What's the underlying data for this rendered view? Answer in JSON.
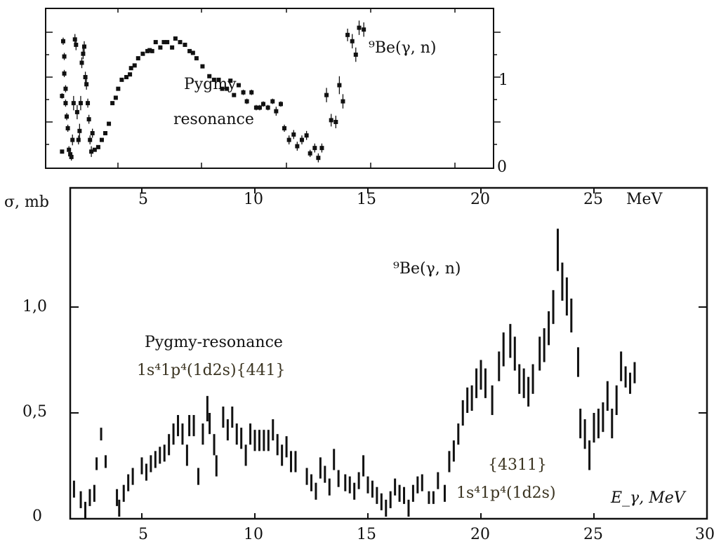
{
  "chart_data": [
    {
      "type": "scatter",
      "panel": "top-inset",
      "title": "⁹Be(γ, n)",
      "annotation": [
        "Pygmy-",
        "resonance"
      ],
      "ylabel_ticks": [
        "0",
        "1"
      ],
      "ylim": [
        0,
        1.77
      ],
      "xlim": [
        0.6,
        20.8
      ],
      "points": [
        [
          1.36,
          1.4,
          0.04
        ],
        [
          1.41,
          1.23,
          0.04
        ],
        [
          1.41,
          1.04,
          0.04
        ],
        [
          1.47,
          0.87,
          0.04
        ],
        [
          1.47,
          0.71,
          0.04
        ],
        [
          1.52,
          0.56,
          0.04
        ],
        [
          1.31,
          0.79,
          0.03
        ],
        [
          1.31,
          0.17,
          0.02
        ],
        [
          1.57,
          0.43,
          0.04
        ],
        [
          1.62,
          0.19,
          0.04
        ],
        [
          1.68,
          0.14,
          0.04
        ],
        [
          1.73,
          0.11,
          0.04
        ],
        [
          1.78,
          0.3,
          0.06
        ],
        [
          1.83,
          0.71,
          0.08
        ],
        [
          1.89,
          1.42,
          0.06
        ],
        [
          1.94,
          1.36,
          0.06
        ],
        [
          1.99,
          0.61,
          0.08
        ],
        [
          2.05,
          0.3,
          0.05
        ],
        [
          2.1,
          0.4,
          0.08
        ],
        [
          2.15,
          0.71,
          0.08
        ],
        [
          2.2,
          1.16,
          0.06
        ],
        [
          2.26,
          1.26,
          0.06
        ],
        [
          2.31,
          1.34,
          0.06
        ],
        [
          2.36,
          1.0,
          0.06
        ],
        [
          2.41,
          0.92,
          0.06
        ],
        [
          2.47,
          0.71,
          0.05
        ],
        [
          2.52,
          0.53,
          0.05
        ],
        [
          2.57,
          0.3,
          0.05
        ],
        [
          2.63,
          0.17,
          0.06
        ],
        [
          2.68,
          0.375,
          0.05
        ],
        [
          2.78,
          0.19,
          0.02
        ],
        [
          2.94,
          0.22,
          0.02
        ],
        [
          3.1,
          0.3,
          0.02
        ],
        [
          3.26,
          0.375,
          0.02
        ],
        [
          3.42,
          0.48,
          0.02
        ],
        [
          3.58,
          0.71,
          0.02
        ],
        [
          3.73,
          0.77,
          0.02
        ],
        [
          3.84,
          0.87,
          0.02
        ],
        [
          4.0,
          0.97,
          0.02
        ],
        [
          4.21,
          1.0,
          0.02
        ],
        [
          4.37,
          1.03,
          0.02
        ],
        [
          4.42,
          1.1,
          0.02
        ],
        [
          4.58,
          1.13,
          0.02
        ],
        [
          4.74,
          1.21,
          0.02
        ],
        [
          4.95,
          1.26,
          0.02
        ],
        [
          5.16,
          1.29,
          0.02
        ],
        [
          5.26,
          1.3,
          0.02
        ],
        [
          5.37,
          1.29,
          0.02
        ],
        [
          5.53,
          1.39,
          0.02
        ],
        [
          5.74,
          1.33,
          0.02
        ],
        [
          5.9,
          1.39,
          0.02
        ],
        [
          6.05,
          1.39,
          0.02
        ],
        [
          6.27,
          1.33,
          0.02
        ],
        [
          6.42,
          1.43,
          0.02
        ],
        [
          6.63,
          1.39,
          0.02
        ],
        [
          6.85,
          1.36,
          0.02
        ],
        [
          7.06,
          1.29,
          0.02
        ],
        [
          7.21,
          1.27,
          0.02
        ],
        [
          7.37,
          1.21,
          0.02
        ],
        [
          7.64,
          1.12,
          0.02
        ],
        [
          7.95,
          1.01,
          0.02
        ],
        [
          8.16,
          0.97,
          0.02
        ],
        [
          8.37,
          0.97,
          0.02
        ],
        [
          8.53,
          0.87,
          0.02
        ],
        [
          8.74,
          0.87,
          0.02
        ],
        [
          8.9,
          0.96,
          0.02
        ],
        [
          9.06,
          0.8,
          0.02
        ],
        [
          9.27,
          0.91,
          0.02
        ],
        [
          9.48,
          0.83,
          0.03
        ],
        [
          9.64,
          0.73,
          0.03
        ],
        [
          9.85,
          0.83,
          0.03
        ],
        [
          10.06,
          0.66,
          0.03
        ],
        [
          10.22,
          0.66,
          0.03
        ],
        [
          10.38,
          0.7,
          0.03
        ],
        [
          10.59,
          0.66,
          0.03
        ],
        [
          10.8,
          0.73,
          0.03
        ],
        [
          10.96,
          0.62,
          0.05
        ],
        [
          11.17,
          0.7,
          0.03
        ],
        [
          11.33,
          0.43,
          0.04
        ],
        [
          11.54,
          0.3,
          0.05
        ],
        [
          11.75,
          0.36,
          0.05
        ],
        [
          11.91,
          0.23,
          0.05
        ],
        [
          12.12,
          0.3,
          0.05
        ],
        [
          12.33,
          0.35,
          0.05
        ],
        [
          12.49,
          0.15,
          0.04
        ],
        [
          12.7,
          0.21,
          0.05
        ],
        [
          12.86,
          0.1,
          0.05
        ],
        [
          13.02,
          0.21,
          0.05
        ],
        [
          13.23,
          0.8,
          0.08
        ],
        [
          13.44,
          0.52,
          0.07
        ],
        [
          13.65,
          0.5,
          0.07
        ],
        [
          13.81,
          0.91,
          0.1
        ],
        [
          13.97,
          0.73,
          0.08
        ],
        [
          14.18,
          1.47,
          0.07
        ],
        [
          14.39,
          1.4,
          0.08
        ],
        [
          14.55,
          1.25,
          0.08
        ],
        [
          14.7,
          1.55,
          0.08
        ],
        [
          14.91,
          1.53,
          0.08
        ]
      ]
    },
    {
      "type": "scatter",
      "panel": "main",
      "title": "⁹Be(γ, n)",
      "ylabel": "σ, mb",
      "xlabel": "E_γ, MeV",
      "xunit_label": "MeV",
      "xlim": [
        1.85,
        30
      ],
      "ylim": [
        0,
        1.56
      ],
      "x_ticks": [
        "5",
        "10",
        "15",
        "20",
        "25",
        "30"
      ],
      "x_ticks_top": [
        "5",
        "10",
        "15",
        "20",
        "25"
      ],
      "y_ticks": [
        "0",
        "0,5",
        "1,0"
      ],
      "annotations": {
        "pygmy_label": "Pygmy-resonance",
        "pygmy_config": "1s⁴1p⁴(1d2s){441}",
        "gdr_symmetry": "{4311}",
        "gdr_config": "1s⁴1p⁴(1d2s)"
      },
      "points": [
        [
          2.0,
          0.14,
          0.04
        ],
        [
          2.3,
          0.09,
          0.04
        ],
        [
          2.5,
          0.04,
          0.04
        ],
        [
          2.7,
          0.1,
          0.04
        ],
        [
          2.9,
          0.12,
          0.04
        ],
        [
          3.0,
          0.26,
          0.03
        ],
        [
          3.2,
          0.4,
          0.03
        ],
        [
          3.4,
          0.27,
          0.03
        ],
        [
          3.9,
          0.1,
          0.04
        ],
        [
          4.0,
          0.05,
          0.04
        ],
        [
          4.2,
          0.12,
          0.04
        ],
        [
          4.4,
          0.17,
          0.04
        ],
        [
          4.6,
          0.2,
          0.04
        ],
        [
          5.0,
          0.25,
          0.04
        ],
        [
          5.2,
          0.22,
          0.04
        ],
        [
          5.4,
          0.26,
          0.04
        ],
        [
          5.6,
          0.28,
          0.04
        ],
        [
          5.8,
          0.3,
          0.04
        ],
        [
          6.0,
          0.31,
          0.04
        ],
        [
          6.2,
          0.35,
          0.05
        ],
        [
          6.4,
          0.4,
          0.05
        ],
        [
          6.6,
          0.44,
          0.05
        ],
        [
          6.8,
          0.4,
          0.05
        ],
        [
          7.0,
          0.3,
          0.05
        ],
        [
          7.1,
          0.44,
          0.05
        ],
        [
          7.3,
          0.44,
          0.05
        ],
        [
          7.5,
          0.2,
          0.04
        ],
        [
          7.7,
          0.4,
          0.05
        ],
        [
          7.9,
          0.52,
          0.06
        ],
        [
          8.0,
          0.45,
          0.05
        ],
        [
          8.2,
          0.35,
          0.05
        ],
        [
          8.3,
          0.25,
          0.05
        ],
        [
          8.6,
          0.48,
          0.05
        ],
        [
          8.8,
          0.42,
          0.05
        ],
        [
          9.0,
          0.48,
          0.05
        ],
        [
          9.2,
          0.4,
          0.05
        ],
        [
          9.4,
          0.38,
          0.05
        ],
        [
          9.6,
          0.3,
          0.05
        ],
        [
          9.8,
          0.4,
          0.05
        ],
        [
          10.0,
          0.37,
          0.05
        ],
        [
          10.2,
          0.37,
          0.05
        ],
        [
          10.4,
          0.37,
          0.05
        ],
        [
          10.6,
          0.37,
          0.05
        ],
        [
          10.8,
          0.42,
          0.05
        ],
        [
          11.0,
          0.35,
          0.05
        ],
        [
          11.2,
          0.3,
          0.05
        ],
        [
          11.4,
          0.34,
          0.05
        ],
        [
          11.6,
          0.27,
          0.05
        ],
        [
          11.8,
          0.27,
          0.05
        ],
        [
          12.3,
          0.2,
          0.04
        ],
        [
          12.5,
          0.17,
          0.04
        ],
        [
          12.7,
          0.13,
          0.04
        ],
        [
          12.9,
          0.24,
          0.05
        ],
        [
          13.1,
          0.21,
          0.04
        ],
        [
          13.3,
          0.15,
          0.04
        ],
        [
          13.5,
          0.28,
          0.05
        ],
        [
          13.7,
          0.19,
          0.04
        ],
        [
          14.0,
          0.17,
          0.04
        ],
        [
          14.2,
          0.16,
          0.04
        ],
        [
          14.4,
          0.13,
          0.04
        ],
        [
          14.6,
          0.18,
          0.04
        ],
        [
          14.8,
          0.25,
          0.05
        ],
        [
          15.0,
          0.16,
          0.04
        ],
        [
          15.2,
          0.14,
          0.04
        ],
        [
          15.4,
          0.11,
          0.04
        ],
        [
          15.6,
          0.08,
          0.04
        ],
        [
          15.8,
          0.05,
          0.04
        ],
        [
          16.0,
          0.09,
          0.04
        ],
        [
          16.2,
          0.15,
          0.04
        ],
        [
          16.4,
          0.12,
          0.04
        ],
        [
          16.6,
          0.11,
          0.04
        ],
        [
          16.8,
          0.05,
          0.04
        ],
        [
          17.0,
          0.12,
          0.04
        ],
        [
          17.2,
          0.16,
          0.04
        ],
        [
          17.4,
          0.17,
          0.04
        ],
        [
          17.7,
          0.1,
          0.03
        ],
        [
          17.9,
          0.1,
          0.03
        ],
        [
          18.1,
          0.18,
          0.04
        ],
        [
          18.4,
          0.12,
          0.04
        ],
        [
          18.6,
          0.27,
          0.05
        ],
        [
          18.8,
          0.32,
          0.05
        ],
        [
          19.0,
          0.4,
          0.05
        ],
        [
          19.2,
          0.5,
          0.06
        ],
        [
          19.4,
          0.56,
          0.06
        ],
        [
          19.6,
          0.57,
          0.06
        ],
        [
          19.8,
          0.64,
          0.07
        ],
        [
          20.0,
          0.68,
          0.07
        ],
        [
          20.2,
          0.64,
          0.07
        ],
        [
          20.5,
          0.56,
          0.07
        ],
        [
          20.8,
          0.72,
          0.07
        ],
        [
          21.0,
          0.8,
          0.08
        ],
        [
          21.3,
          0.84,
          0.08
        ],
        [
          21.5,
          0.78,
          0.08
        ],
        [
          21.7,
          0.66,
          0.07
        ],
        [
          21.9,
          0.64,
          0.07
        ],
        [
          22.1,
          0.6,
          0.07
        ],
        [
          22.3,
          0.66,
          0.07
        ],
        [
          22.6,
          0.78,
          0.08
        ],
        [
          22.8,
          0.82,
          0.08
        ],
        [
          23.0,
          0.9,
          0.08
        ],
        [
          23.2,
          1.0,
          0.08
        ],
        [
          23.4,
          1.27,
          0.1
        ],
        [
          23.6,
          1.12,
          0.09
        ],
        [
          23.8,
          1.05,
          0.09
        ],
        [
          24.0,
          0.96,
          0.08
        ],
        [
          24.3,
          0.74,
          0.07
        ],
        [
          24.4,
          0.45,
          0.07
        ],
        [
          24.6,
          0.4,
          0.07
        ],
        [
          24.8,
          0.3,
          0.07
        ],
        [
          25.0,
          0.43,
          0.07
        ],
        [
          25.2,
          0.45,
          0.07
        ],
        [
          25.4,
          0.48,
          0.07
        ],
        [
          25.6,
          0.58,
          0.07
        ],
        [
          25.8,
          0.45,
          0.07
        ],
        [
          26.0,
          0.56,
          0.07
        ],
        [
          26.2,
          0.72,
          0.07
        ],
        [
          26.4,
          0.67,
          0.05
        ],
        [
          26.6,
          0.64,
          0.05
        ],
        [
          26.8,
          0.69,
          0.05
        ]
      ]
    }
  ]
}
